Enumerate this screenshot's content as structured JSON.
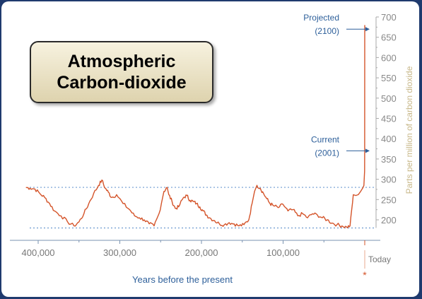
{
  "chart_data": {
    "type": "line",
    "title": "Atmospheric Carbon-dioxide",
    "xlabel": "Years before the present",
    "ylabel": "Parts per million of carbon dioxide",
    "x_unit": "years before present",
    "xlim": [
      420000,
      0
    ],
    "ylim": [
      180,
      700
    ],
    "x_ticks": [
      400000,
      300000,
      200000,
      100000
    ],
    "x_tick_labels": [
      "400,000",
      "300,000",
      "200,000",
      "100,000"
    ],
    "x_end_label": "Today",
    "y_ticks": [
      200,
      250,
      300,
      350,
      400,
      450,
      500,
      550,
      600,
      650,
      700
    ],
    "grid": false,
    "reference_lines": [
      {
        "axis": "y",
        "value": 280
      },
      {
        "axis": "y",
        "value": 180
      }
    ],
    "series": [
      {
        "color": "#d4542a",
        "x": [
          415000,
          410000,
          404000,
          398000,
          392000,
          386000,
          380000,
          372000,
          364000,
          356000,
          350000,
          344000,
          338000,
          332000,
          326000,
          322000,
          318000,
          314000,
          310000,
          304000,
          296000,
          288000,
          282000,
          276000,
          270000,
          264000,
          258000,
          252000,
          246000,
          242000,
          240000,
          236000,
          232000,
          228000,
          222000,
          218000,
          214000,
          210000,
          206000,
          202000,
          198000,
          194000,
          190000,
          184000,
          178000,
          172000,
          166000,
          160000,
          154000,
          148000,
          142000,
          138000,
          135000,
          132000,
          128000,
          124000,
          120000,
          116000,
          112000,
          106000,
          100000,
          94000,
          88000,
          82000,
          76000,
          70000,
          64000,
          58000,
          52000,
          46000,
          40000,
          34000,
          28000,
          22000,
          18000,
          14000,
          11000,
          8000,
          5000,
          2000,
          1000,
          200,
          100,
          0
        ],
        "values": [
          280,
          278,
          276,
          265,
          255,
          240,
          222,
          210,
          195,
          185,
          195,
          215,
          240,
          265,
          285,
          298,
          278,
          268,
          255,
          262,
          240,
          225,
          210,
          205,
          200,
          190,
          185,
          215,
          270,
          280,
          262,
          245,
          228,
          232,
          255,
          260,
          248,
          245,
          240,
          232,
          222,
          212,
          205,
          198,
          190,
          188,
          193,
          190,
          185,
          188,
          200,
          240,
          270,
          285,
          278,
          265,
          252,
          240,
          235,
          230,
          238,
          222,
          225,
          210,
          215,
          205,
          215,
          212,
          205,
          200,
          192,
          188,
          185,
          182,
          185,
          262,
          260,
          262,
          270,
          280,
          285,
          320,
          370,
          680
        ]
      }
    ],
    "annotations": [
      {
        "text": "Projected",
        "text2": "(2100)",
        "y": 670
      },
      {
        "text": "Current",
        "text2": "(2001)",
        "y": 370
      }
    ]
  }
}
